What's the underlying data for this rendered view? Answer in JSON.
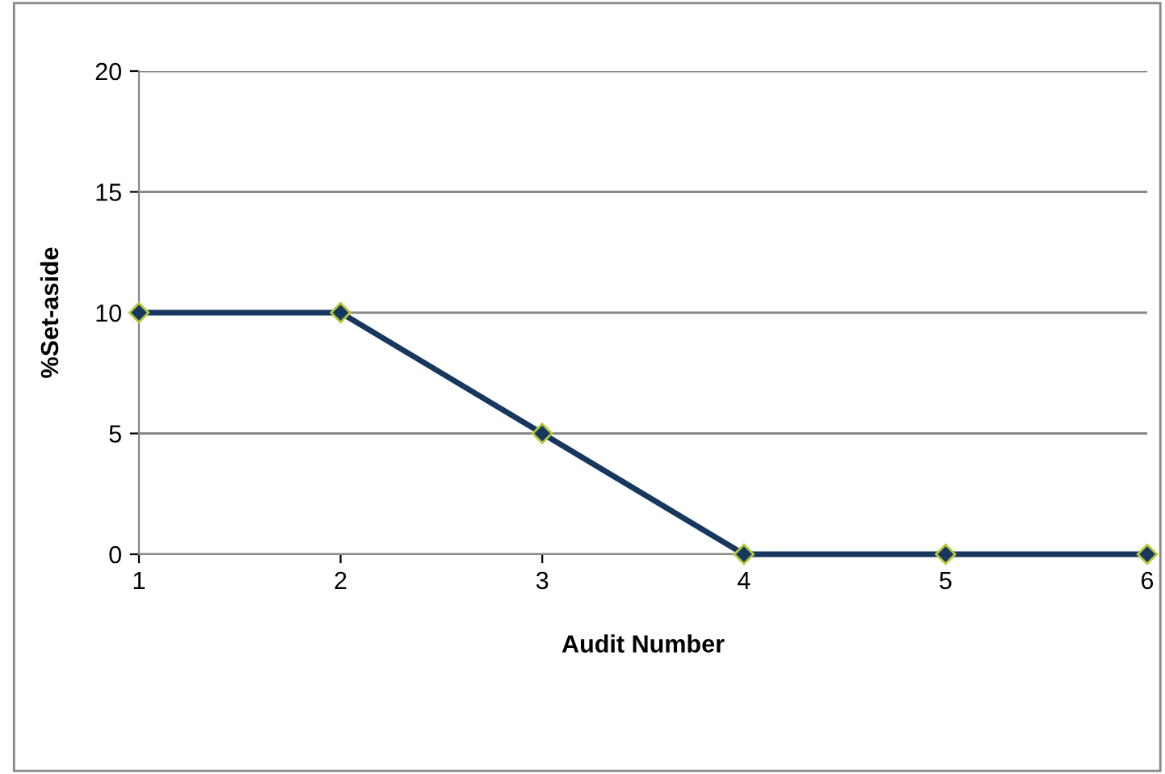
{
  "chart_data": {
    "type": "line",
    "xlabel": "Audit Number",
    "ylabel": "%Set-aside",
    "x": [
      1,
      2,
      3,
      4,
      5,
      6
    ],
    "series": [
      {
        "color": "#17375e",
        "values": [
          10,
          10,
          5,
          0,
          0,
          0
        ]
      }
    ],
    "xlim": [
      1,
      6
    ],
    "xticks": [
      1,
      2,
      3,
      4,
      5,
      6
    ],
    "ylim": [
      0,
      20
    ],
    "yticks": [
      0,
      5,
      10,
      15,
      20
    ],
    "grid": "y",
    "marker": "diamond",
    "line_style": "solid",
    "legend": false
  }
}
